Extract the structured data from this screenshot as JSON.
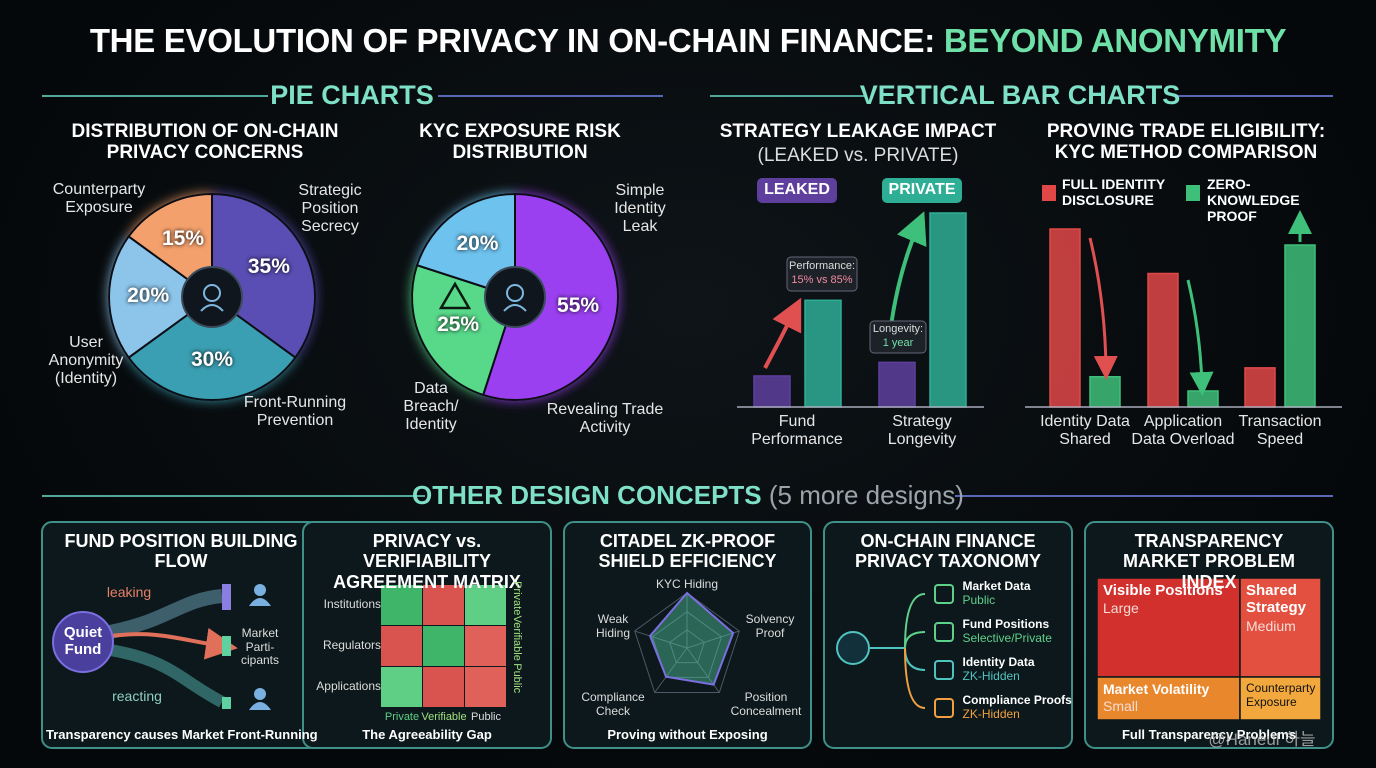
{
  "title": {
    "main": "THE EVOLUTION OF PRIVACY IN ON-CHAIN FINANCE:",
    "highlight": "BEYOND ANONYMITY"
  },
  "sections": {
    "pie": "PIE CHARTS",
    "bar": "VERTICAL BAR CHARTS",
    "other": "OTHER DESIGN CONCEPTS",
    "other_count": "(5 more designs)"
  },
  "chart_data": [
    {
      "type": "pie",
      "title": "DISTRIBUTION OF ON-CHAIN PRIVACY CONCERNS",
      "categories": [
        "Strategic Position Secrecy",
        "Front-Running Prevention",
        "User Anonymity (Identity)",
        "Counterparty Exposure"
      ],
      "values": [
        35,
        30,
        20,
        15
      ],
      "value_labels": [
        "35%",
        "30%",
        "20%",
        "15%"
      ],
      "colors": [
        "#5a4db3",
        "#3a9fb3",
        "#8cc4ea",
        "#f4a06c"
      ]
    },
    {
      "type": "pie",
      "title": "KYC EXPOSURE RISK DISTRIBUTION",
      "categories": [
        "Revealing Trade Activity",
        "Data Breach/ Identity",
        "Simple Identity Leak"
      ],
      "values": [
        55,
        25,
        20
      ],
      "value_labels": [
        "55%",
        "25%",
        "20%"
      ],
      "colors": [
        "#9a3ff0",
        "#58d98a",
        "#6ec2ee"
      ]
    },
    {
      "type": "bar",
      "title": "STRATEGY LEAKAGE IMPACT",
      "subtitle": "(LEAKED vs. PRIVATE)",
      "categories": [
        "Fund Performance",
        "Strategy Longevity"
      ],
      "series": [
        {
          "name": "LEAKED",
          "color": "#5e3f9e",
          "values": [
            16,
            23
          ]
        },
        {
          "name": "PRIVATE",
          "color": "#2fae96",
          "values": [
            55,
            100
          ]
        }
      ],
      "annotations": [
        {
          "title": "Performance:",
          "text": "15% vs 85%"
        },
        {
          "title": "Longevity:",
          "text": "1 year"
        }
      ]
    },
    {
      "type": "bar",
      "title": "PROVING TRADE ELIGIBILITY: KYC METHOD COMPARISON",
      "categories": [
        "Identity Data Shared",
        "Application Data Overload",
        "Transaction Speed"
      ],
      "series": [
        {
          "name": "FULL IDENTITY DISCLOSURE",
          "color": "#e04848",
          "values": [
            100,
            75,
            22
          ]
        },
        {
          "name": "ZERO-KNOWLEDGE PROOF",
          "color": "#3fc07a",
          "values": [
            17,
            9,
            91
          ]
        }
      ]
    }
  ],
  "designs": [
    {
      "title": "FUND POSITION BUILDING FLOW",
      "source": "Quiet Fund",
      "leak": "leaking",
      "target": "Market Parti- cipants",
      "react": "reacting",
      "footer": "Transparency causes Market Front-Running"
    },
    {
      "title": "PRIVACY vs. VERIFIABILITY AGREEMENT MATRIX",
      "rows": [
        "Institutions",
        "Regulators",
        "Applications"
      ],
      "columns": [
        "Private",
        "Verifiable",
        "Public"
      ],
      "cell_colors": [
        [
          "#3fb56a",
          "#d9534f",
          "#5fcf86"
        ],
        [
          "#d9534f",
          "#3fb56a",
          "#e0605a"
        ],
        [
          "#5fcf86",
          "#d9534f",
          "#e0605a"
        ]
      ],
      "footer": "The Agreeability Gap"
    },
    {
      "title": "CITADEL ZK-PROOF SHIELD EFFICIENCY",
      "axes": [
        "KYC Hiding",
        "Solvency Proof",
        "Position Concealment",
        "Compliance Check",
        "Weak Hiding"
      ],
      "values": [
        85,
        75,
        70,
        55,
        60
      ],
      "footer": "Proving without Exposing"
    },
    {
      "title": "ON-CHAIN FINANCE PRIVACY TAXONOMY",
      "items": [
        {
          "label": "Market Data",
          "status": "Public",
          "color": "#5fd08a"
        },
        {
          "label": "Fund Positions",
          "status": "Selective/Private",
          "color": "#5fd08a"
        },
        {
          "label": "Identity Data",
          "status": "ZK-Hidden",
          "color": "#4fc3c0"
        },
        {
          "label": "Compliance Proofs",
          "status": "ZK-Hidden",
          "color": "#f0a040"
        }
      ]
    },
    {
      "title": "TRANSPARENCY MARKET PROBLEM INDEX",
      "cells": [
        {
          "label": "Visible Positions",
          "size": "Large",
          "color": "#d2302c"
        },
        {
          "label": "Shared Strategy",
          "size": "Medium",
          "color": "#e35040"
        },
        {
          "label": "Market Volatility",
          "size": "Small",
          "color": "#e8872c"
        },
        {
          "label": "Counterparty Exposure",
          "color": "#f2a83c"
        }
      ],
      "footer": "Full Transparency Problems"
    }
  ],
  "watermark": "@Haneul 하늘"
}
